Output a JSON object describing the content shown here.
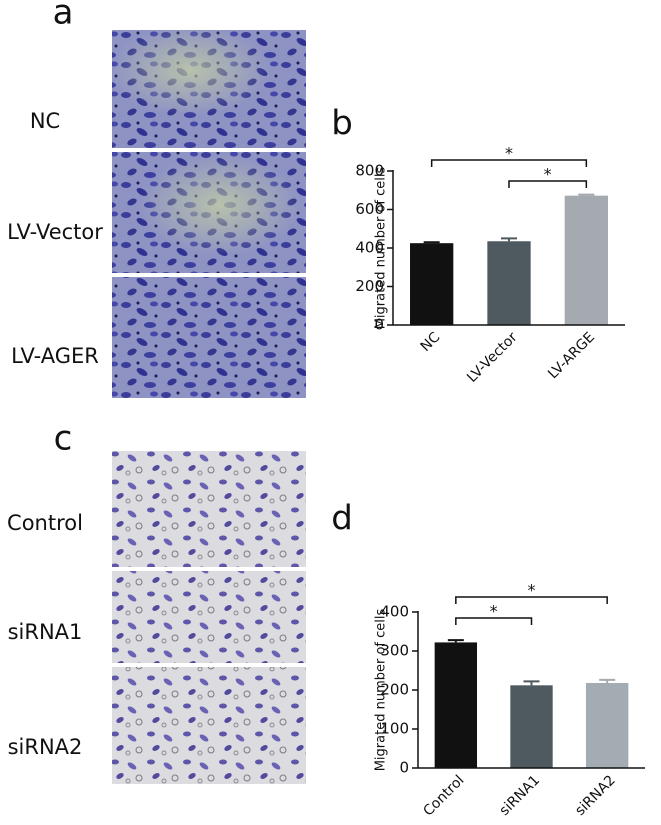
{
  "figure": {
    "panel_labels": [
      "a",
      "b",
      "c",
      "d"
    ],
    "images_a": [
      "NC",
      "LV-Vector",
      "LV-AGER"
    ],
    "images_c": [
      "Control",
      "siRNA1",
      "siRNA2"
    ]
  },
  "chart_data": [
    {
      "type": "bar",
      "y_label": "Migrated number of cells",
      "categories": [
        "NC",
        "LV-Vector",
        "LV-ARGE"
      ],
      "values": [
        425,
        435,
        672
      ],
      "errors": [
        5,
        15,
        5
      ],
      "colors": [
        "#111111",
        "#4f5a60",
        "#a4aab0"
      ],
      "ylim": [
        0,
        800
      ],
      "yticks": [
        0,
        200,
        400,
        600,
        800
      ],
      "annotations": [
        {
          "text": "*",
          "from": 0,
          "to": 2
        },
        {
          "text": "*",
          "from": 1,
          "to": 2
        }
      ]
    },
    {
      "type": "bar",
      "y_label": "Migrated number of cells",
      "categories": [
        "Control",
        "siRNA1",
        "siRNA2"
      ],
      "values": [
        322,
        212,
        218
      ],
      "errors": [
        6,
        10,
        8
      ],
      "colors": [
        "#111111",
        "#4f5a60",
        "#a3acb3"
      ],
      "ylim": [
        0,
        400
      ],
      "yticks": [
        0,
        100,
        200,
        300,
        400
      ],
      "annotations": [
        {
          "text": "*",
          "from": 0,
          "to": 2
        },
        {
          "text": "*",
          "from": 0,
          "to": 1
        }
      ]
    }
  ]
}
